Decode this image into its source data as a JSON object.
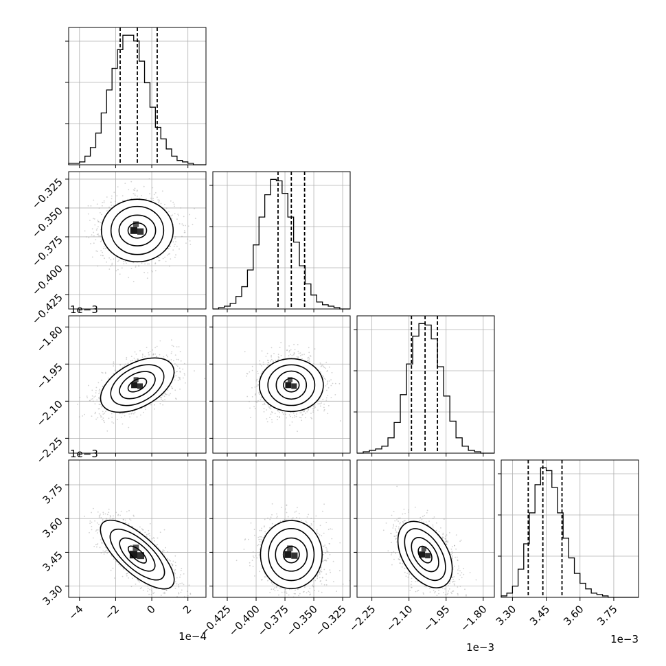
{
  "chart_data": {
    "type": "corner",
    "n_params": 4,
    "variables": [
      {
        "range": [
          -4.6,
          3.0
        ],
        "ticks": [
          -4,
          -2,
          0,
          2
        ],
        "tick_labels": [
          "−4",
          "−2",
          "0",
          "2"
        ],
        "offset": "1e−4"
      },
      {
        "range": [
          -0.4375,
          -0.3185
        ],
        "ticks": [
          -0.425,
          -0.4,
          -0.375,
          -0.35,
          -0.325
        ],
        "tick_labels": [
          "−0.425",
          "−0.400",
          "−0.375",
          "−0.350",
          "−0.325"
        ],
        "offset": "1e−3"
      },
      {
        "range": [
          -2.31,
          -1.755
        ],
        "ticks": [
          -2.25,
          -2.1,
          -1.95,
          -1.8
        ],
        "tick_labels": [
          "−2.25",
          "−2.10",
          "−1.95",
          "−1.80"
        ],
        "offset": "1e−3"
      },
      {
        "range": [
          3.25,
          3.86
        ],
        "ticks": [
          3.3,
          3.45,
          3.6,
          3.75
        ],
        "tick_labels": [
          "3.30",
          "3.45",
          "3.60",
          "3.75"
        ],
        "offset": "1e−3"
      }
    ],
    "marginals": [
      {
        "bins": [
          -4.6,
          -4.3,
          -4.0,
          -3.7,
          -3.4,
          -3.1,
          -2.8,
          -2.5,
          -2.2,
          -1.9,
          -1.6,
          -1.3,
          -1.0,
          -0.7,
          -0.4,
          -0.1,
          0.2,
          0.5,
          0.8,
          1.1,
          1.4,
          1.7,
          2.0,
          2.3,
          2.6,
          3.0
        ],
        "counts": [
          1,
          1,
          2,
          6,
          12,
          22,
          36,
          52,
          67,
          80,
          90,
          90,
          86,
          72,
          57,
          40,
          26,
          18,
          11,
          6,
          3,
          2,
          1,
          0,
          0
        ],
        "quantiles": [
          -1.75,
          -0.8,
          0.3
        ]
      },
      {
        "bins": [
          -0.4375,
          -0.4325,
          -0.4275,
          -0.4225,
          -0.4175,
          -0.4125,
          -0.4075,
          -0.4025,
          -0.3975,
          -0.3925,
          -0.3875,
          -0.3825,
          -0.3775,
          -0.3725,
          -0.3675,
          -0.3625,
          -0.3575,
          -0.3525,
          -0.3475,
          -0.3425,
          -0.3375,
          -0.3325,
          -0.3275,
          -0.3225,
          -0.3185
        ],
        "counts": [
          0,
          1,
          2,
          4,
          9,
          16,
          28,
          46,
          66,
          82,
          93,
          92,
          83,
          66,
          48,
          31,
          18,
          10,
          5,
          3,
          2,
          1,
          0,
          0
        ],
        "quantiles": [
          -0.381,
          -0.3695,
          -0.358
        ]
      },
      {
        "bins": [
          -2.31,
          -2.285,
          -2.26,
          -2.235,
          -2.21,
          -2.185,
          -2.16,
          -2.135,
          -2.11,
          -2.085,
          -2.06,
          -2.035,
          -2.01,
          -1.985,
          -1.96,
          -1.935,
          -1.91,
          -1.885,
          -1.86,
          -1.835,
          -1.81,
          -1.785,
          -1.755
        ],
        "counts": [
          0,
          1,
          2,
          3,
          5,
          11,
          22,
          42,
          64,
          84,
          93,
          92,
          82,
          62,
          41,
          23,
          11,
          5,
          2,
          1,
          0,
          0
        ],
        "quantiles": [
          -2.09,
          -2.035,
          -1.985
        ]
      },
      {
        "bins": [
          3.25,
          3.275,
          3.3,
          3.325,
          3.35,
          3.375,
          3.4,
          3.425,
          3.45,
          3.475,
          3.5,
          3.525,
          3.55,
          3.575,
          3.6,
          3.625,
          3.65,
          3.675,
          3.7,
          3.725,
          3.75,
          3.775,
          3.8,
          3.825,
          3.86
        ],
        "counts": [
          1,
          3,
          8,
          20,
          38,
          60,
          80,
          92,
          90,
          78,
          60,
          42,
          28,
          17,
          10,
          6,
          3,
          2,
          1,
          0,
          0,
          0,
          0,
          0
        ],
        "quantiles": [
          3.37,
          3.435,
          3.52
        ]
      }
    ],
    "pairs": [
      {
        "row": 1,
        "col": 0,
        "mean": [
          -0.8,
          -0.3695
        ],
        "sd": [
          1.0,
          0.0135
        ],
        "rho": 0.0
      },
      {
        "row": 2,
        "col": 0,
        "mean": [
          -0.8,
          -2.035
        ],
        "sd": [
          1.0,
          0.055
        ],
        "rho": 0.45
      },
      {
        "row": 2,
        "col": 1,
        "mean": [
          -0.3695,
          -2.035
        ],
        "sd": [
          0.0135,
          0.055
        ],
        "rho": 0.0
      },
      {
        "row": 3,
        "col": 0,
        "mean": [
          -0.8,
          3.44
        ],
        "sd": [
          1.0,
          0.075
        ],
        "rho": -0.7
      },
      {
        "row": 3,
        "col": 1,
        "mean": [
          -0.3695,
          3.44
        ],
        "sd": [
          0.0135,
          0.075
        ],
        "rho": 0.0
      },
      {
        "row": 3,
        "col": 2,
        "mean": [
          -2.035,
          3.44
        ],
        "sd": [
          0.055,
          0.075
        ],
        "rho": -0.45
      }
    ]
  }
}
